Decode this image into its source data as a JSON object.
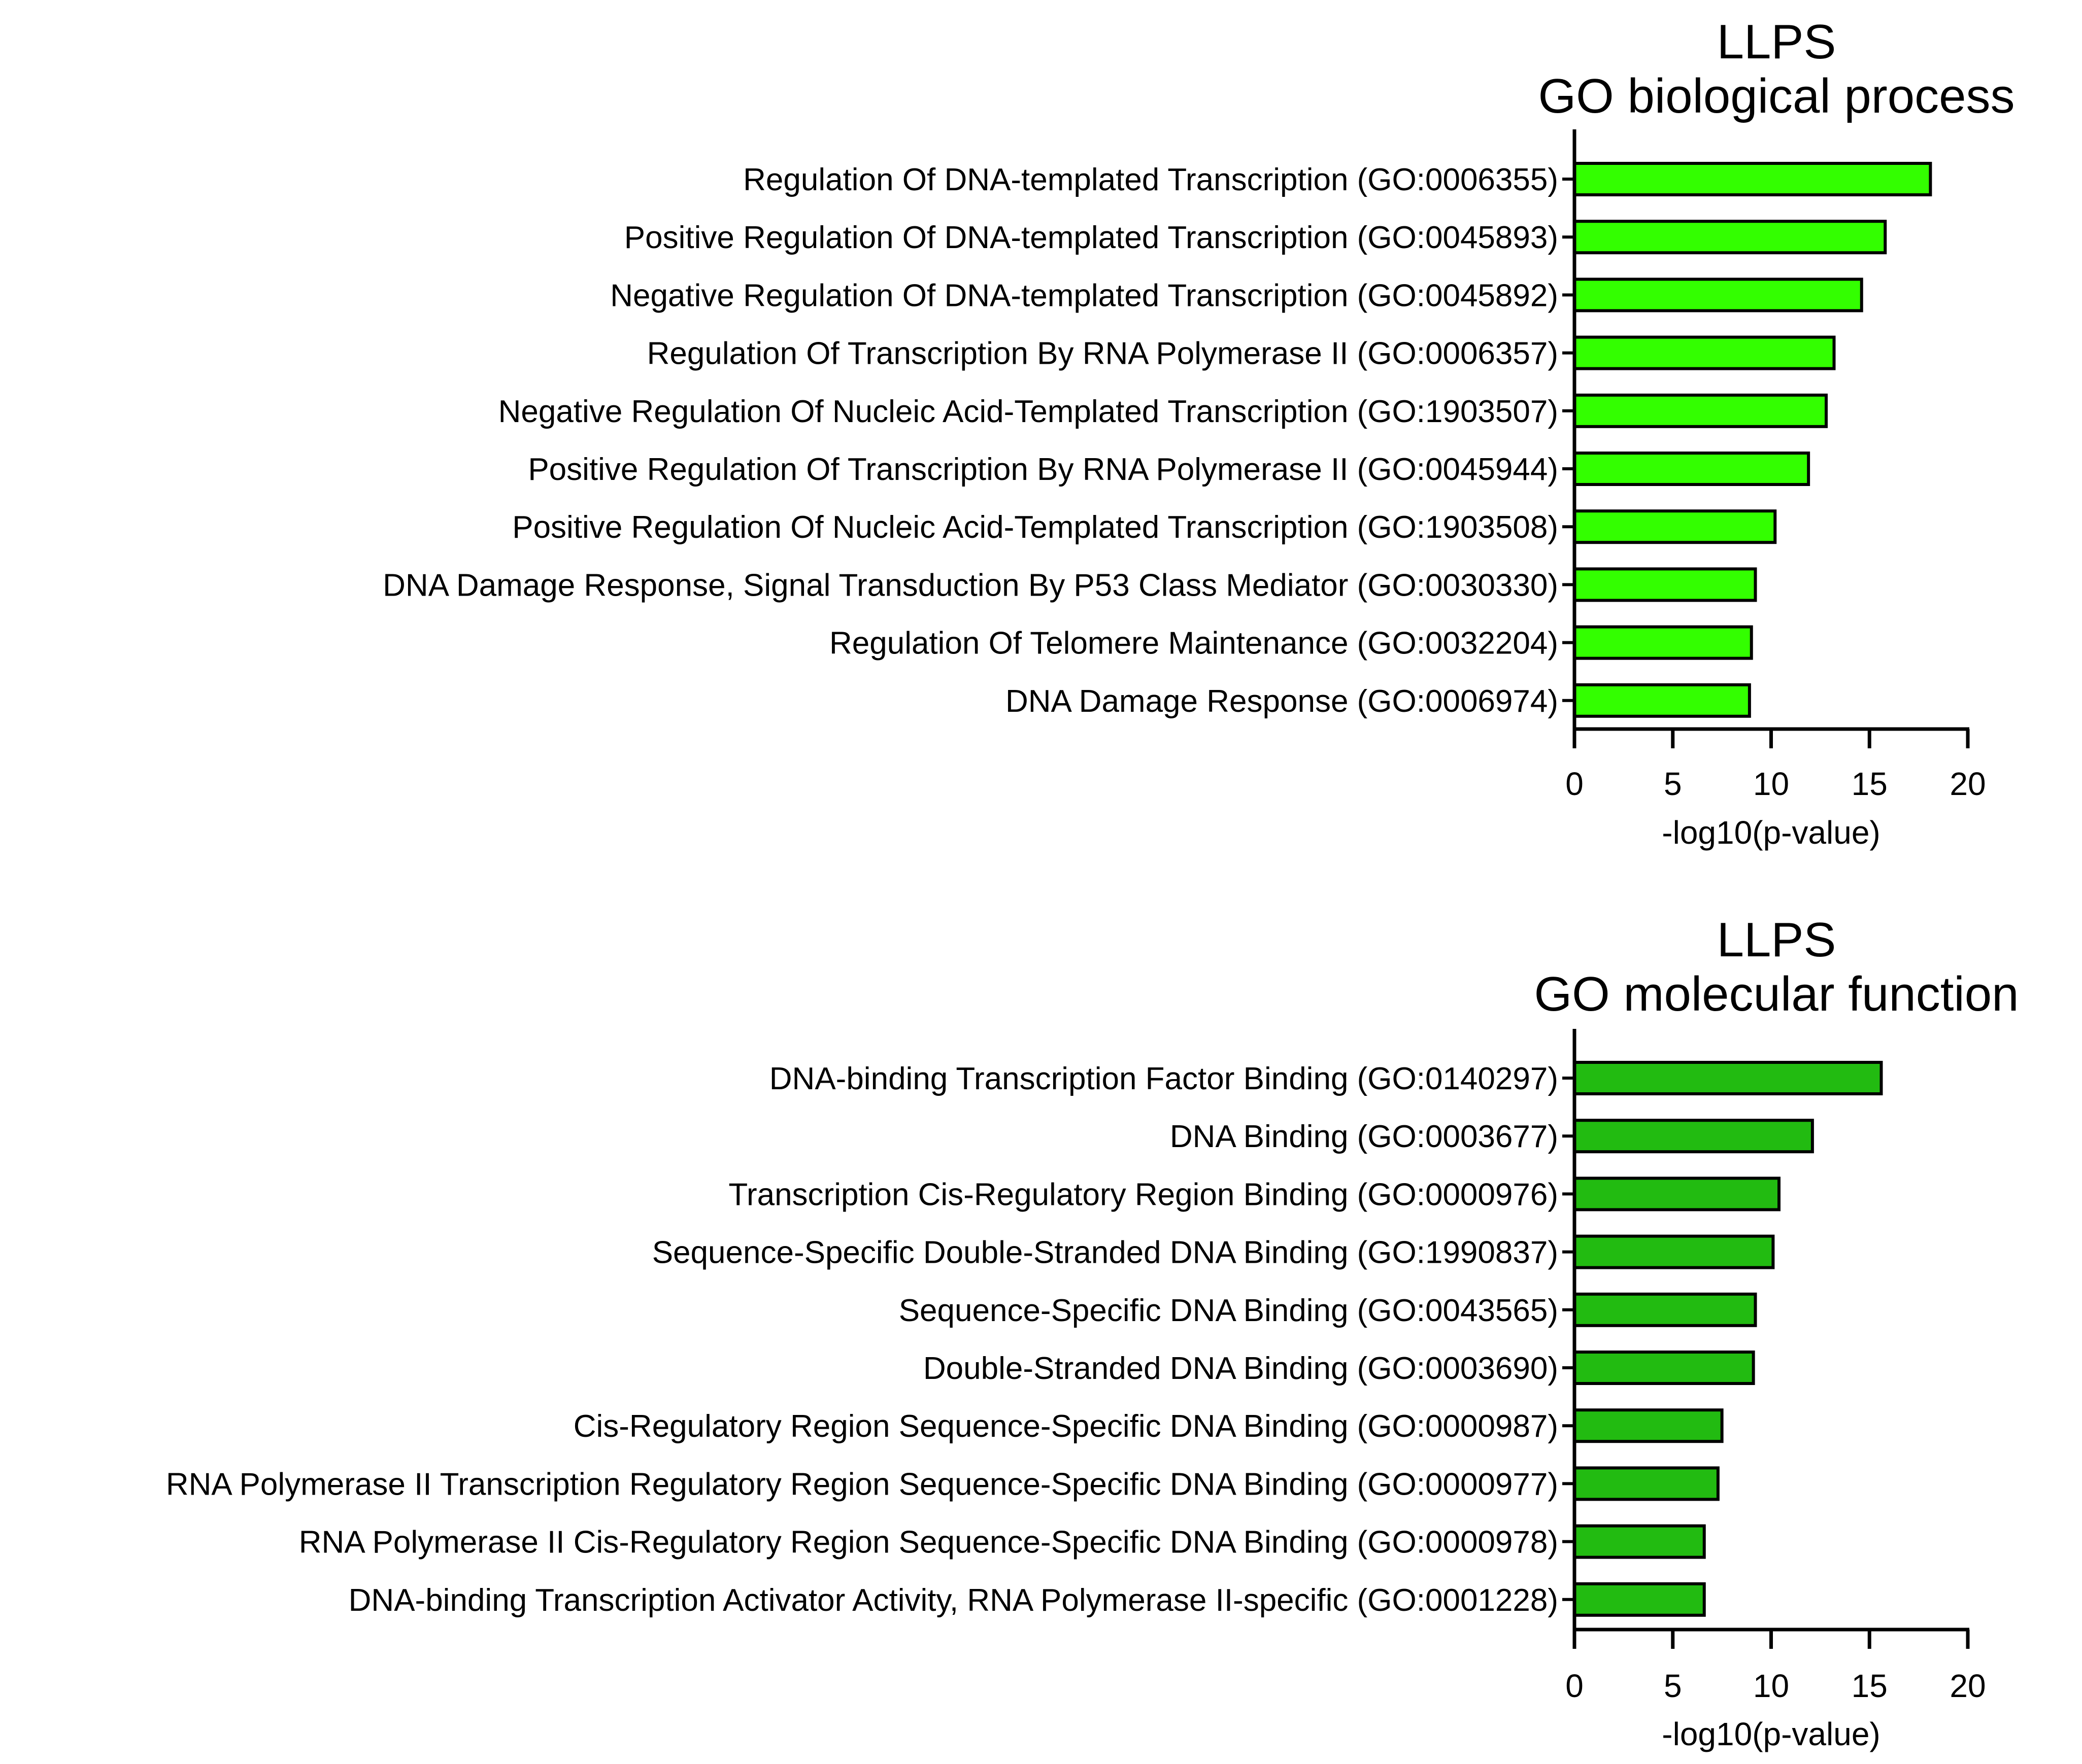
{
  "chart_data": [
    {
      "type": "bar",
      "orientation": "horizontal",
      "title": [
        "LLPS",
        "GO biological process"
      ],
      "xlabel": "-log10(p-value)",
      "ylabel": "",
      "xlim": [
        0,
        20
      ],
      "xticks": [
        0,
        5,
        10,
        15,
        20
      ],
      "bar_color": "#33ff00",
      "categories": [
        "Regulation Of DNA-templated Transcription (GO:0006355)",
        "Positive Regulation Of DNA-templated Transcription (GO:0045893)",
        "Negative Regulation Of DNA-templated Transcription (GO:0045892)",
        "Regulation Of Transcription By RNA Polymerase II (GO:0006357)",
        "Negative Regulation Of Nucleic Acid-Templated Transcription (GO:1903507)",
        "Positive Regulation Of Transcription By RNA Polymerase II (GO:0045944)",
        "Positive Regulation Of Nucleic Acid-Templated Transcription (GO:1903508)",
        "DNA Damage Response, Signal Transduction By P53 Class Mediator (GO:0030330)",
        "Regulation Of Telomere Maintenance (GO:0032204)",
        "DNA Damage Response (GO:0006974)"
      ],
      "values": [
        18.1,
        15.8,
        14.6,
        13.2,
        12.8,
        11.9,
        10.2,
        9.2,
        9.0,
        8.9
      ]
    },
    {
      "type": "bar",
      "orientation": "horizontal",
      "title": [
        "LLPS",
        "GO molecular function"
      ],
      "xlabel": "-log10(p-value)",
      "ylabel": "",
      "xlim": [
        0,
        20
      ],
      "xticks": [
        0,
        5,
        10,
        15,
        20
      ],
      "bar_color": "#22bb11",
      "categories": [
        "DNA-binding Transcription Factor Binding (GO:0140297)",
        "DNA Binding (GO:0003677)",
        "Transcription Cis-Regulatory Region Binding (GO:0000976)",
        "Sequence-Specific Double-Stranded DNA Binding (GO:1990837)",
        "Sequence-Specific DNA Binding (GO:0043565)",
        "Double-Stranded DNA Binding (GO:0003690)",
        "Cis-Regulatory Region Sequence-Specific DNA Binding (GO:0000987)",
        "RNA Polymerase II Transcription Regulatory Region Sequence-Specific DNA Binding (GO:0000977)",
        "RNA Polymerase II Cis-Regulatory Region Sequence-Specific DNA Binding (GO:0000978)",
        "DNA-binding Transcription Activator Activity, RNA Polymerase II-specific (GO:0001228)"
      ],
      "values": [
        15.6,
        12.1,
        10.4,
        10.1,
        9.2,
        9.1,
        7.5,
        7.3,
        6.6,
        6.6
      ]
    }
  ]
}
